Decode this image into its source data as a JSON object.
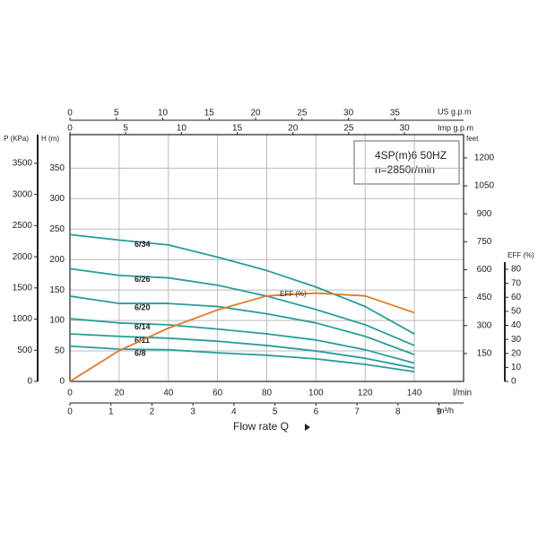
{
  "chart_data": {
    "type": "line",
    "title_lines": [
      "4SP(m)6  50HZ",
      "n=2850r/min"
    ],
    "x_label": "l/min",
    "x_title": "Flow rate Q",
    "y_label": "H (m)",
    "y2_label": "EFF (%)",
    "x": [
      0,
      20,
      40,
      60,
      80,
      100,
      120,
      140
    ],
    "xlim": [
      0,
      160
    ],
    "xticks": [
      0,
      20,
      40,
      60,
      80,
      100,
      120,
      140
    ],
    "ylim": [
      0,
      405
    ],
    "yticks": [
      0,
      50,
      100,
      150,
      200,
      250,
      300,
      350
    ],
    "y2lim": [
      0,
      176
    ],
    "y2ticks": [
      0,
      10,
      20,
      30,
      40,
      50,
      60,
      70,
      80
    ],
    "grid": true,
    "series": [
      {
        "name": "6/34",
        "color": "#2a9d9a",
        "values": [
          241,
          232,
          224,
          204,
          182,
          155,
          123,
          78
        ]
      },
      {
        "name": "6/26",
        "color": "#2a9d9a",
        "values": [
          185,
          174,
          170,
          158,
          140,
          118,
          93,
          59
        ]
      },
      {
        "name": "6/20",
        "color": "#2a9d9a",
        "values": [
          140,
          128,
          128,
          123,
          111,
          96,
          74,
          44
        ]
      },
      {
        "name": "6/14",
        "color": "#2a9d9a",
        "values": [
          103,
          96,
          93,
          86,
          78,
          68,
          52,
          30
        ]
      },
      {
        "name": "6/11",
        "color": "#2a9d9a",
        "values": [
          78,
          74,
          71,
          66,
          59,
          50,
          38,
          22
        ]
      },
      {
        "name": "6/8",
        "color": "#2a9d9a",
        "values": [
          58,
          53,
          52,
          47,
          43,
          37,
          28,
          16
        ]
      },
      {
        "name": "EFF (%)",
        "color": "#e07b2a",
        "axis": "y2",
        "values": [
          0,
          22,
          38,
          51,
          61,
          63,
          61,
          49
        ]
      }
    ],
    "pressure_axis": {
      "label": "P (KPa)",
      "lim": [
        0,
        3960
      ],
      "ticks": [
        0,
        500,
        1000,
        1500,
        2000,
        2500,
        3000,
        3500
      ]
    },
    "feet_axis": {
      "label": "feet",
      "lim": [
        0,
        1325
      ],
      "ticks": [
        150,
        300,
        450,
        600,
        750,
        900,
        1050,
        1200
      ]
    },
    "us_gpm_axis": {
      "label": "US g.p.m",
      "lim": [
        0,
        42.4
      ],
      "ticks": [
        0,
        5,
        10,
        15,
        20,
        25,
        30,
        35
      ]
    },
    "imp_gpm_axis": {
      "label": "Imp g.p.m",
      "lim": [
        0,
        35.3
      ],
      "ticks": [
        0,
        5,
        10,
        15,
        20,
        25,
        30
      ]
    },
    "m3h_axis": {
      "label": "m³/h",
      "lim": [
        0,
        9.6
      ],
      "ticks": [
        0,
        1,
        2,
        3,
        4,
        5,
        6,
        7,
        8,
        9
      ]
    }
  }
}
